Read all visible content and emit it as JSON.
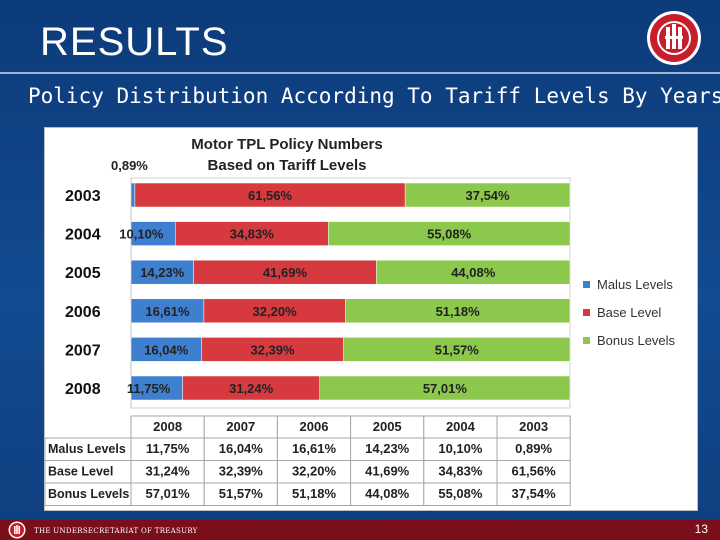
{
  "slide": {
    "title": "RESULTS",
    "subtitle": "Policy Distribution According To Tariff Levels By Years",
    "page_number": "13",
    "footer_text": "THE UNDERSECRETARIAT OF TREASURY"
  },
  "colors": {
    "malus": "#3f7fd0",
    "base": "#d63a3f",
    "bonus": "#8cc84b",
    "footer": "#7a0e1a"
  },
  "chart_data": {
    "type": "bar",
    "orientation": "horizontal-stacked-100",
    "title_lines": [
      "Motor TPL Policy Numbers",
      "Based on Tariff Levels"
    ],
    "categories": [
      "2003",
      "2004",
      "2005",
      "2006",
      "2007",
      "2008"
    ],
    "series": [
      {
        "name": "Malus Levels",
        "values": [
          0.89,
          10.1,
          14.23,
          16.61,
          16.04,
          11.75
        ],
        "labels": [
          "0,89%",
          "10,10%",
          "14,23%",
          "16,61%",
          "16,04%",
          "11,75%"
        ]
      },
      {
        "name": "Base Level",
        "values": [
          61.56,
          34.83,
          41.69,
          32.2,
          32.39,
          31.24
        ],
        "labels": [
          "61,56%",
          "34,83%",
          "41,69%",
          "32,20%",
          "32,39%",
          "31,24%"
        ]
      },
      {
        "name": "Bonus Levels",
        "values": [
          37.54,
          55.08,
          44.08,
          51.18,
          51.57,
          57.01
        ],
        "labels": [
          "37,54%",
          "55,08%",
          "44,08%",
          "51,18%",
          "51,57%",
          "57,01%"
        ]
      }
    ],
    "xlim": [
      0,
      100
    ],
    "legend_position": "right",
    "table": {
      "columns": [
        "2008",
        "2007",
        "2006",
        "2005",
        "2004",
        "2003"
      ],
      "rows": [
        {
          "label": "Malus Levels",
          "cells": [
            "11,75%",
            "16,04%",
            "16,61%",
            "14,23%",
            "10,10%",
            "0,89%"
          ]
        },
        {
          "label": "Base Level",
          "cells": [
            "31,24%",
            "32,39%",
            "32,20%",
            "41,69%",
            "34,83%",
            "61,56%"
          ]
        },
        {
          "label": "Bonus Levels",
          "cells": [
            "57,01%",
            "51,57%",
            "51,18%",
            "44,08%",
            "55,08%",
            "37,54%"
          ]
        }
      ]
    }
  }
}
